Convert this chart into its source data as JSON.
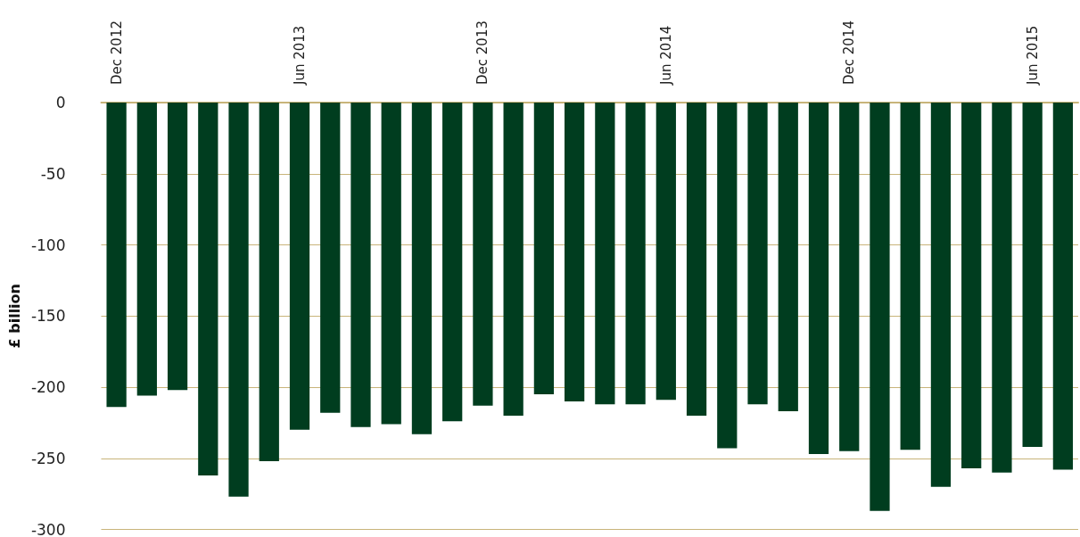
{
  "chart_data": {
    "type": "bar",
    "ylabel": "£ billion",
    "categories": [
      "Dec 2012",
      null,
      null,
      null,
      null,
      null,
      "Jun 2013",
      null,
      null,
      null,
      null,
      null,
      "Dec 2013",
      null,
      null,
      null,
      null,
      null,
      "Jun 2014",
      null,
      null,
      null,
      null,
      null,
      "Dec 2014",
      null,
      null,
      null,
      null,
      null,
      "Jun 2015",
      null
    ],
    "values": [
      -214,
      -206,
      -202,
      -262,
      -277,
      -252,
      -230,
      -218,
      -228,
      -226,
      -233,
      -224,
      -213,
      -220,
      -205,
      -210,
      -212,
      -212,
      -209,
      -220,
      -243,
      -212,
      -217,
      -247,
      -245,
      -287,
      -244,
      -270,
      -257,
      -260,
      -242,
      -258
    ],
    "color": "#003d1f",
    "ylim": [
      -300,
      0
    ],
    "yticks": [
      -300,
      -250,
      -200,
      -150,
      -100,
      -50,
      0
    ],
    "grid": "y"
  }
}
